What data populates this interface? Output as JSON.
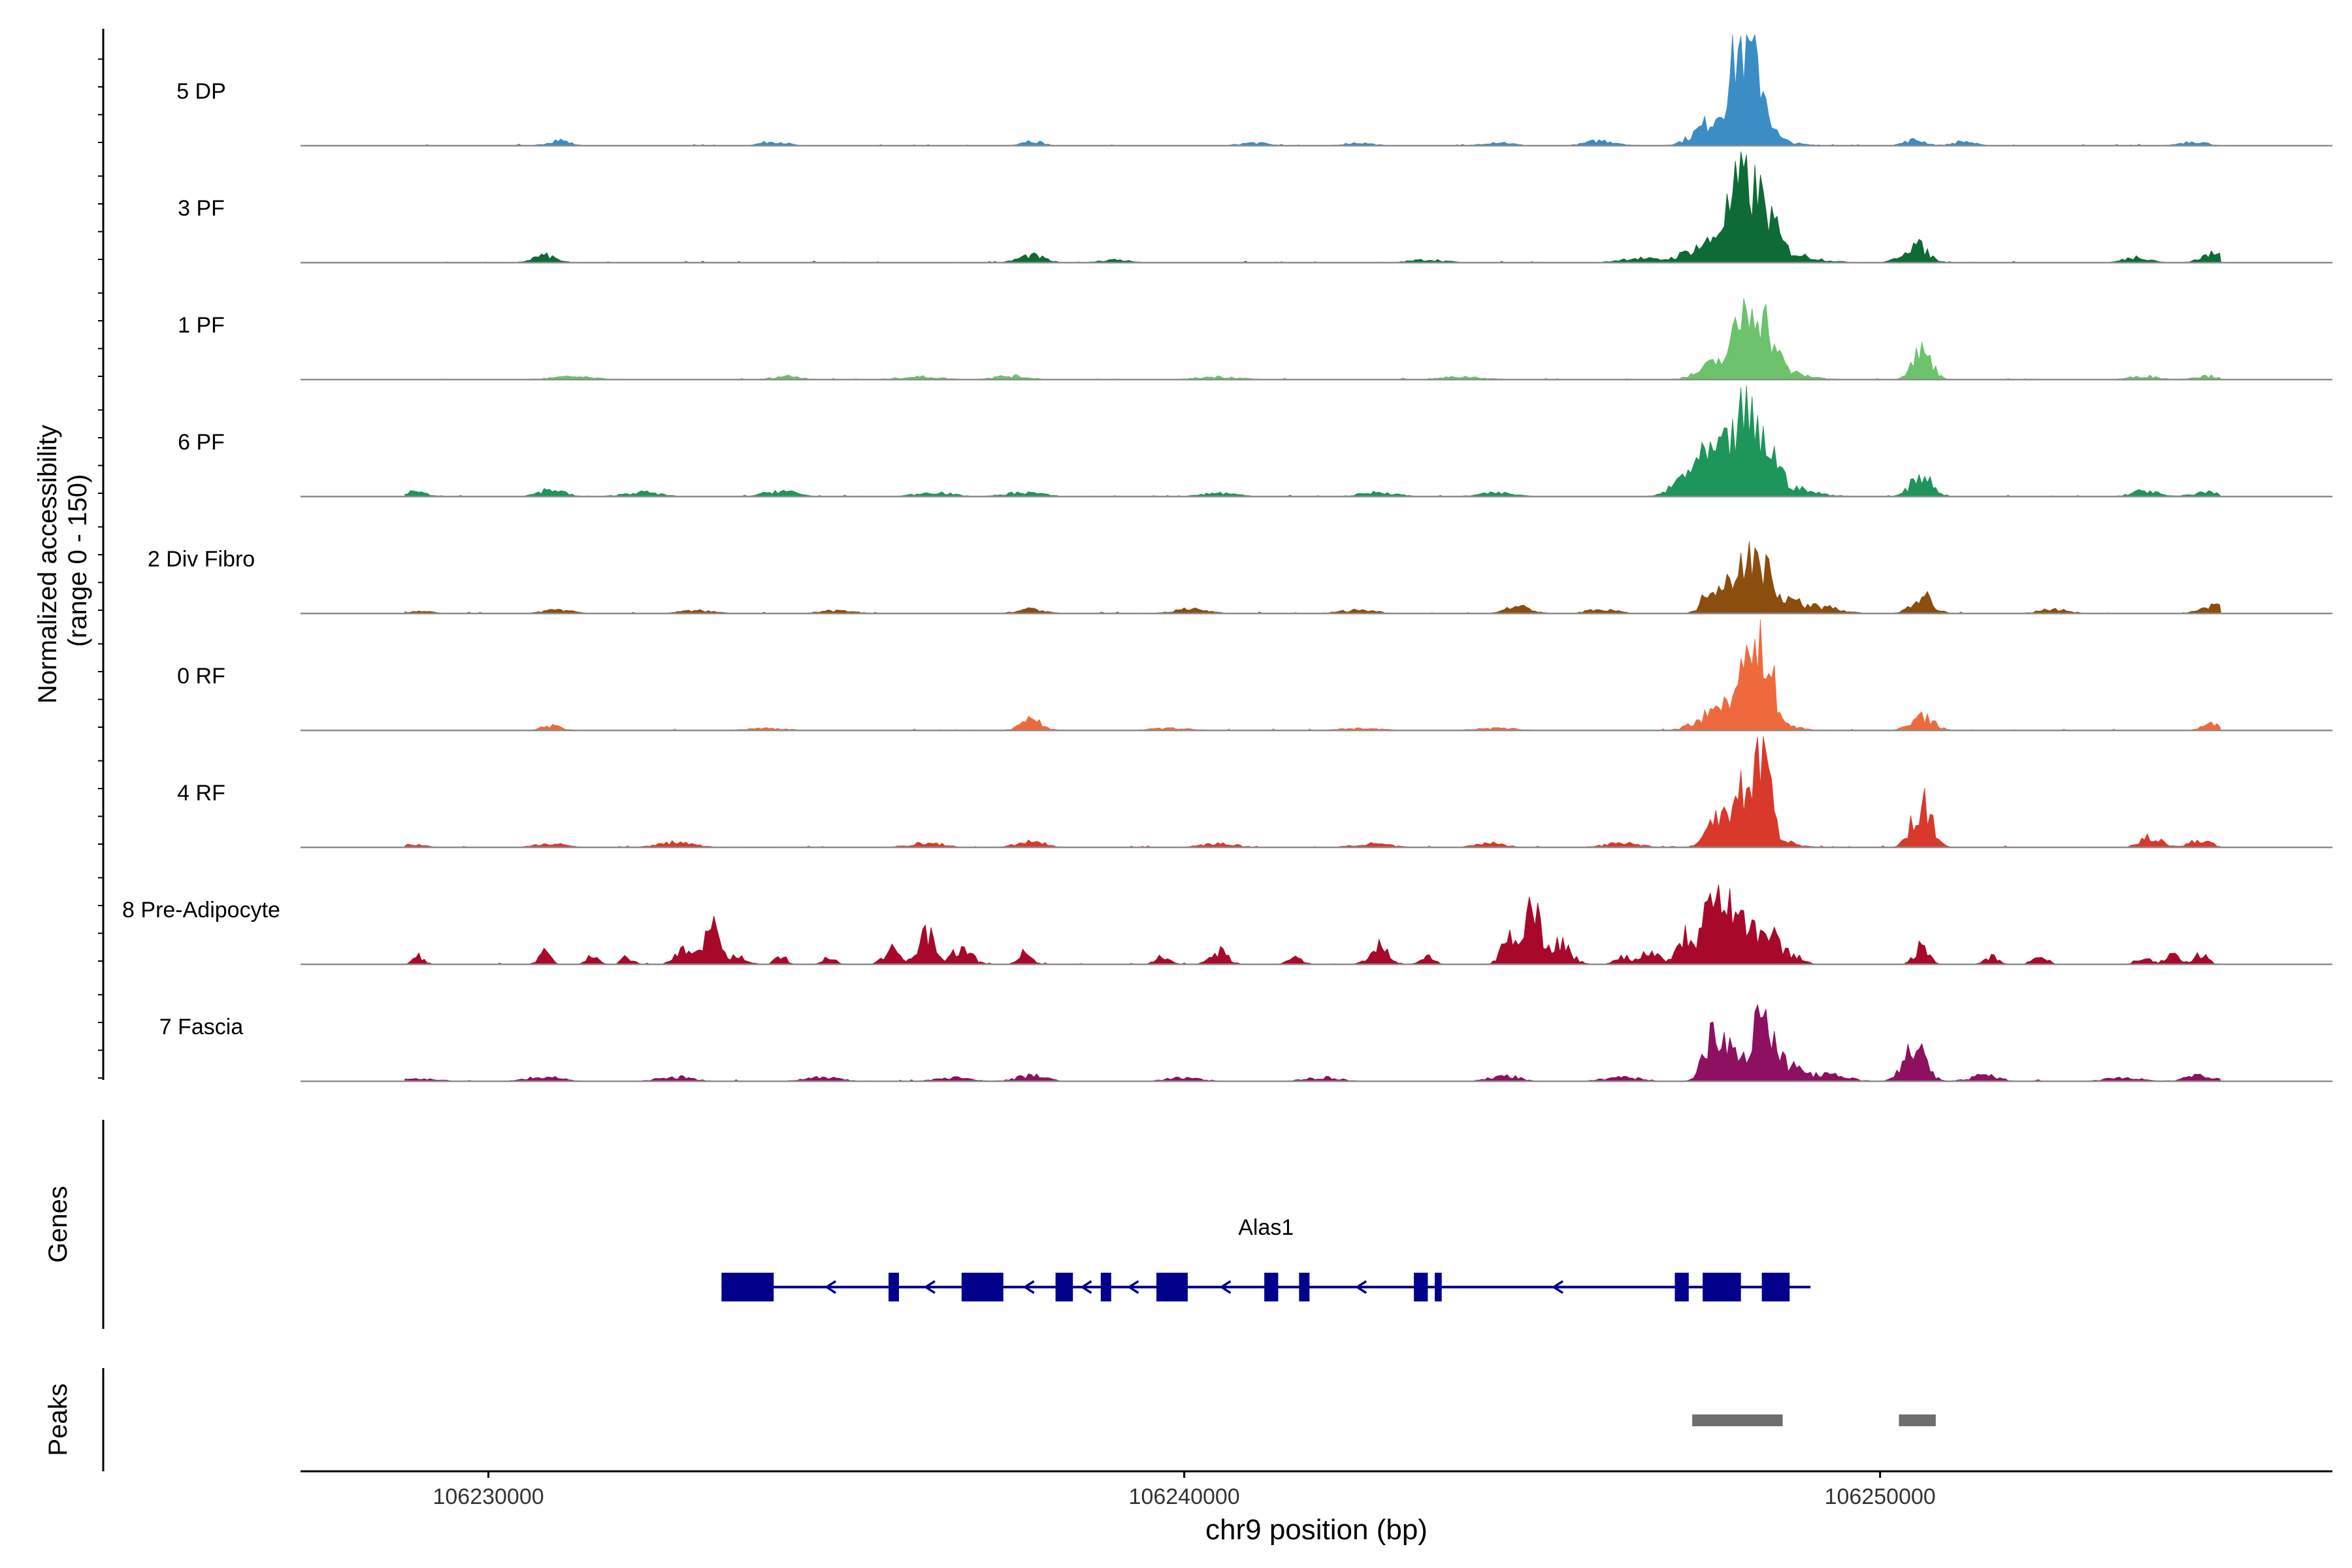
{
  "chart_data": {
    "type": "area",
    "track_type": "genome coverage (ATAC)",
    "y_axis_title": "Normalized accessibility\n(range 0 - 150)",
    "y_range": [
      0,
      150
    ],
    "x_axis_title": "chr9 position (bp)",
    "x_range": [
      106227300,
      106256500
    ],
    "x_ticks": [
      106230000,
      106240000,
      106250000
    ],
    "x_tick_labels": [
      "106230000",
      "106240000",
      "106250000"
    ],
    "genes_label": "Genes",
    "peaks_label": "Peaks",
    "tracks": [
      {
        "name": "5 DP",
        "color": "#3A8DC5",
        "peaks": [
          [
            106231000,
            8,
            150
          ],
          [
            106234100,
            6,
            180
          ],
          [
            106237800,
            7,
            150
          ],
          [
            106241000,
            4,
            200
          ],
          [
            106242500,
            4,
            200
          ],
          [
            106244500,
            5,
            200
          ],
          [
            106246000,
            7,
            220
          ],
          [
            106247600,
            25,
            250
          ],
          [
            106247900,
            45,
            130
          ],
          [
            106248000,
            58,
            110
          ],
          [
            106248150,
            50,
            110
          ],
          [
            106248300,
            55,
            110
          ],
          [
            106248050,
            20,
            400
          ],
          [
            106250500,
            8,
            150
          ],
          [
            106251200,
            6,
            150
          ],
          [
            106254500,
            6,
            180
          ]
        ]
      },
      {
        "name": "3 PF",
        "color": "#0E6B35",
        "peaks": [
          [
            106230800,
            10,
            160
          ],
          [
            106237800,
            10,
            180
          ],
          [
            106239000,
            4,
            200
          ],
          [
            106243500,
            4,
            250
          ],
          [
            106246500,
            6,
            250
          ],
          [
            106247500,
            20,
            300
          ],
          [
            106247800,
            35,
            120
          ],
          [
            106248000,
            70,
            110
          ],
          [
            106248200,
            55,
            110
          ],
          [
            106248400,
            40,
            130
          ],
          [
            106248300,
            20,
            500
          ],
          [
            106250500,
            25,
            170
          ],
          [
            106253700,
            8,
            180
          ],
          [
            106254800,
            12,
            180
          ]
        ]
      },
      {
        "name": "1 PF",
        "color": "#6CC36C",
        "peaks": [
          [
            106231200,
            4,
            300
          ],
          [
            106234300,
            5,
            200
          ],
          [
            106236200,
            4,
            300
          ],
          [
            106237500,
            5,
            250
          ],
          [
            106240500,
            4,
            300
          ],
          [
            106244000,
            4,
            300
          ],
          [
            106247700,
            18,
            250
          ],
          [
            106248000,
            50,
            110
          ],
          [
            106248200,
            70,
            110
          ],
          [
            106248400,
            40,
            130
          ],
          [
            106248250,
            18,
            450
          ],
          [
            106250600,
            40,
            140
          ],
          [
            106253800,
            5,
            200
          ],
          [
            106254700,
            5,
            200
          ]
        ]
      },
      {
        "name": "6 PF",
        "color": "#1E955A",
        "peaks": [
          [
            106228900,
            6,
            220
          ],
          [
            106230900,
            10,
            180
          ],
          [
            106232200,
            6,
            250
          ],
          [
            106234200,
            8,
            220
          ],
          [
            106236400,
            6,
            250
          ],
          [
            106237700,
            6,
            250
          ],
          [
            106240500,
            5,
            250
          ],
          [
            106242800,
            6,
            250
          ],
          [
            106244500,
            5,
            250
          ],
          [
            106247300,
            30,
            220
          ],
          [
            106247700,
            40,
            220
          ],
          [
            106248000,
            55,
            120
          ],
          [
            106248150,
            40,
            110
          ],
          [
            106248400,
            45,
            130
          ],
          [
            106248200,
            25,
            500
          ],
          [
            106250600,
            30,
            150
          ],
          [
            106253800,
            8,
            180
          ],
          [
            106254700,
            6,
            200
          ]
        ]
      },
      {
        "name": "2 Div Fibro",
        "color": "#8B4E0E",
        "peaks": [
          [
            106229000,
            3,
            200
          ],
          [
            106231000,
            6,
            200
          ],
          [
            106233000,
            4,
            250
          ],
          [
            106235000,
            4,
            250
          ],
          [
            106237800,
            6,
            200
          ],
          [
            106240100,
            6,
            250
          ],
          [
            106242500,
            5,
            250
          ],
          [
            106244800,
            10,
            180
          ],
          [
            106246000,
            6,
            200
          ],
          [
            106247600,
            40,
            130
          ],
          [
            106247900,
            45,
            130
          ],
          [
            106248100,
            60,
            110
          ],
          [
            106248350,
            50,
            110
          ],
          [
            106248600,
            20,
            250
          ],
          [
            106249200,
            8,
            250
          ],
          [
            106250600,
            25,
            150
          ],
          [
            106252500,
            6,
            200
          ],
          [
            106254800,
            10,
            180
          ]
        ]
      },
      {
        "name": "0 RF",
        "color": "#EE6A3C",
        "peaks": [
          [
            106230900,
            6,
            150
          ],
          [
            106234000,
            3,
            300
          ],
          [
            106237800,
            15,
            150
          ],
          [
            106239800,
            3,
            300
          ],
          [
            106242500,
            3,
            300
          ],
          [
            106244500,
            3,
            300
          ],
          [
            106247600,
            20,
            250
          ],
          [
            106247900,
            30,
            140
          ],
          [
            106248100,
            60,
            110
          ],
          [
            106248350,
            100,
            110
          ],
          [
            106248200,
            20,
            350
          ],
          [
            106250600,
            20,
            160
          ],
          [
            106254800,
            10,
            150
          ]
        ]
      },
      {
        "name": "4 RF",
        "color": "#D8392A",
        "peaks": [
          [
            106228900,
            4,
            200
          ],
          [
            106230900,
            6,
            200
          ],
          [
            106232700,
            7,
            250
          ],
          [
            106236300,
            6,
            250
          ],
          [
            106237800,
            8,
            200
          ],
          [
            106240500,
            5,
            250
          ],
          [
            106242700,
            5,
            250
          ],
          [
            106244400,
            6,
            200
          ],
          [
            106246300,
            6,
            250
          ],
          [
            106247700,
            40,
            150
          ],
          [
            106248000,
            50,
            120
          ],
          [
            106248300,
            125,
            110
          ],
          [
            106248150,
            25,
            350
          ],
          [
            106250600,
            60,
            140
          ],
          [
            106253900,
            15,
            150
          ],
          [
            106254600,
            10,
            150
          ]
        ]
      },
      {
        "name": "8 Pre-Adipocyte",
        "color": "#A8092B",
        "peaks": [
          [
            106229000,
            12,
            80
          ],
          [
            106230800,
            18,
            80
          ],
          [
            106231500,
            12,
            80
          ],
          [
            106232000,
            10,
            80
          ],
          [
            106232800,
            18,
            120
          ],
          [
            106233200,
            50,
            110
          ],
          [
            106233600,
            12,
            120
          ],
          [
            106234200,
            12,
            80
          ],
          [
            106234900,
            10,
            80
          ],
          [
            106235800,
            20,
            120
          ],
          [
            106236300,
            45,
            110
          ],
          [
            106236800,
            20,
            150
          ],
          [
            106237700,
            15,
            100
          ],
          [
            106239700,
            12,
            100
          ],
          [
            106240500,
            18,
            120
          ],
          [
            106241600,
            10,
            100
          ],
          [
            106242800,
            28,
            130
          ],
          [
            106243500,
            10,
            100
          ],
          [
            106244700,
            40,
            120
          ],
          [
            106245000,
            80,
            110
          ],
          [
            106245400,
            30,
            150
          ],
          [
            106246300,
            12,
            100
          ],
          [
            106246700,
            20,
            120
          ],
          [
            106247200,
            40,
            120
          ],
          [
            106247550,
            120,
            100
          ],
          [
            106247800,
            90,
            120
          ],
          [
            106248100,
            55,
            120
          ],
          [
            106248400,
            40,
            120
          ],
          [
            106248700,
            15,
            150
          ],
          [
            106250600,
            25,
            100
          ],
          [
            106251600,
            10,
            100
          ],
          [
            106252300,
            12,
            100
          ],
          [
            106253800,
            12,
            100
          ],
          [
            106254200,
            12,
            100
          ],
          [
            106254600,
            15,
            100
          ]
        ]
      },
      {
        "name": "7 Fascia",
        "color": "#8E1060",
        "peaks": [
          [
            106229000,
            4,
            250
          ],
          [
            106230800,
            6,
            250
          ],
          [
            106232700,
            6,
            250
          ],
          [
            106234800,
            5,
            250
          ],
          [
            106236700,
            5,
            250
          ],
          [
            106237800,
            8,
            200
          ],
          [
            106240000,
            5,
            250
          ],
          [
            106242000,
            5,
            250
          ],
          [
            106244600,
            8,
            200
          ],
          [
            106246300,
            6,
            250
          ],
          [
            106247600,
            70,
            130
          ],
          [
            106247900,
            45,
            150
          ],
          [
            106248300,
            85,
            120
          ],
          [
            106248600,
            25,
            250
          ],
          [
            106249300,
            8,
            250
          ],
          [
            106250500,
            50,
            150
          ],
          [
            106251500,
            8,
            200
          ],
          [
            106253500,
            5,
            250
          ],
          [
            106254600,
            8,
            200
          ]
        ]
      }
    ],
    "gene": {
      "name": "Alas1",
      "strand": "-",
      "start": 106233350,
      "end": 106249000,
      "exons": [
        [
          106233350,
          106234100
        ],
        [
          106235750,
          106235900
        ],
        [
          106236800,
          106237400
        ],
        [
          106238150,
          106238400
        ],
        [
          106238800,
          106238950
        ],
        [
          106239600,
          106240050
        ],
        [
          106241150,
          106241350
        ],
        [
          106241650,
          106241800
        ],
        [
          106243300,
          106243500
        ],
        [
          106243600,
          106243700
        ],
        [
          106247050,
          106247250
        ],
        [
          106247450,
          106248000
        ],
        [
          106248300,
          106248700
        ]
      ]
    },
    "peak_regions": [
      [
        106247300,
        106248600
      ],
      [
        106250270,
        106250800
      ]
    ]
  }
}
